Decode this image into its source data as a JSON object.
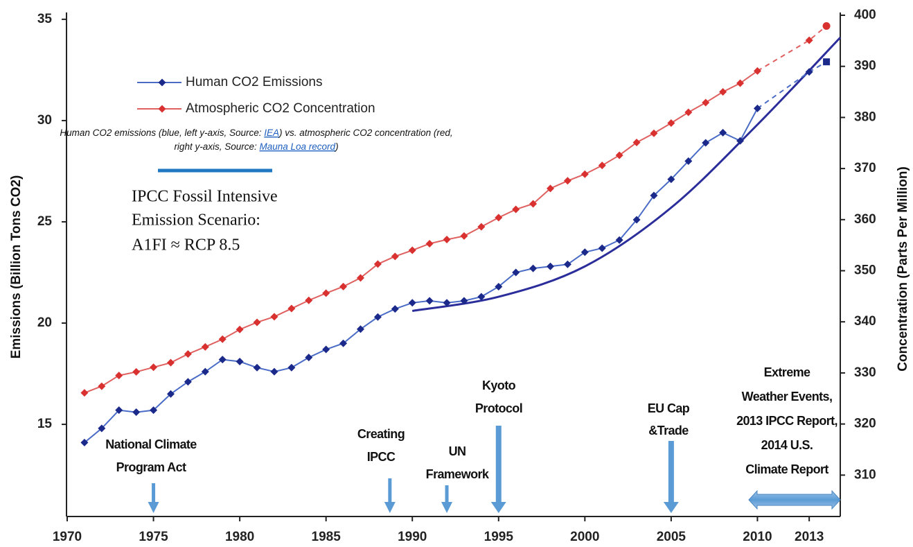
{
  "chart_data": {
    "type": "line",
    "xlim": [
      1970,
      2014.8
    ],
    "xticks": [
      1970,
      1975,
      1980,
      1985,
      1990,
      1995,
      2000,
      2005,
      2010,
      2013
    ],
    "ylim": [
      10.45,
      35.2
    ],
    "yticks": [
      15,
      20,
      25,
      30,
      35
    ],
    "y2lim": [
      301.9,
      400
    ],
    "y2ticks": [
      310,
      320,
      330,
      340,
      350,
      360,
      370,
      380,
      390,
      400
    ],
    "ylabel": "Emissions (Billion Tons CO2)",
    "y2label": "Concentration (Parts Per Million)",
    "legend": "top-left",
    "x": [
      1971,
      1972,
      1973,
      1974,
      1975,
      1976,
      1977,
      1978,
      1979,
      1980,
      1981,
      1982,
      1983,
      1984,
      1985,
      1986,
      1987,
      1988,
      1989,
      1990,
      1991,
      1992,
      1993,
      1994,
      1995,
      1996,
      1997,
      1998,
      1999,
      2000,
      2001,
      2002,
      2003,
      2004,
      2005,
      2006,
      2007,
      2008,
      2009,
      2010,
      2013,
      2014
    ],
    "series": [
      {
        "name": "Human CO2 Emissions",
        "color": "#4a6cc7",
        "marker_color": "#1b2a8a",
        "axis": "y",
        "dash_from": 2010,
        "end_marker": "square",
        "values": [
          14.1,
          14.8,
          15.7,
          15.6,
          15.7,
          16.5,
          17.1,
          17.6,
          18.2,
          18.1,
          17.8,
          17.6,
          17.8,
          18.3,
          18.7,
          19.0,
          19.7,
          20.3,
          20.7,
          21.0,
          21.1,
          21.0,
          21.1,
          21.3,
          21.8,
          22.5,
          22.7,
          22.8,
          22.9,
          23.5,
          23.7,
          24.1,
          25.1,
          26.3,
          27.1,
          28.0,
          28.9,
          29.4,
          29.0,
          30.6,
          32.4,
          32.9
        ]
      },
      {
        "name": "Atmospheric CO2 Concentration",
        "color": "#e06060",
        "marker_color": "#d93030",
        "axis": "y2",
        "dash_from": 2010,
        "end_marker": "circle",
        "values": [
          326.1,
          327.4,
          329.5,
          330.2,
          331.1,
          332.0,
          333.7,
          335.1,
          336.6,
          338.5,
          339.9,
          341.0,
          342.6,
          344.2,
          345.6,
          346.9,
          348.6,
          351.3,
          352.8,
          354.0,
          355.3,
          356.1,
          356.8,
          358.6,
          360.4,
          362.0,
          363.1,
          366.1,
          367.6,
          368.9,
          370.6,
          372.6,
          375.1,
          376.9,
          378.9,
          381.0,
          382.9,
          385.0,
          386.7,
          389.1,
          395.1,
          397.9
        ]
      }
    ],
    "scenario": {
      "lines": [
        "IPCC Fossil Intensive",
        "Emission Scenario:",
        "A1FI ≈ RCP 8.5"
      ],
      "color": "#2b2e9a",
      "key_color": "#1f78c1",
      "x": [
        1990,
        1995,
        2000,
        2005,
        2010,
        2014.8
      ],
      "values": [
        20.6,
        21.3,
        22.8,
        25.7,
        29.8,
        34.1
      ]
    },
    "caption": {
      "line1": [
        "Human CO2 emissions (blue, left y-axis, Source: ",
        "IEA",
        ") vs. atmospheric CO2 concentration (red,"
      ],
      "line2": [
        "right y-axis, Source: ",
        "Mauna Loa record",
        ")"
      ]
    },
    "events": [
      {
        "lines": [
          "National Climate",
          "Program Act"
        ],
        "x": 1975
      },
      {
        "lines": [
          "Creating",
          "IPCC"
        ],
        "x": 1988.7
      },
      {
        "lines": [
          "UN",
          "Framework"
        ],
        "x": 1992
      },
      {
        "lines": [
          "Kyoto",
          "Protocol"
        ],
        "x": 1995
      },
      {
        "lines": [
          "EU Cap",
          "&Trade"
        ],
        "x": 2005
      },
      {
        "lines": [
          "Extreme",
          "Weather Events,",
          "2013 IPCC Report,",
          "2014 U.S.",
          "Climate Report"
        ],
        "x_range": [
          2009.5,
          2014.8
        ]
      }
    ]
  }
}
